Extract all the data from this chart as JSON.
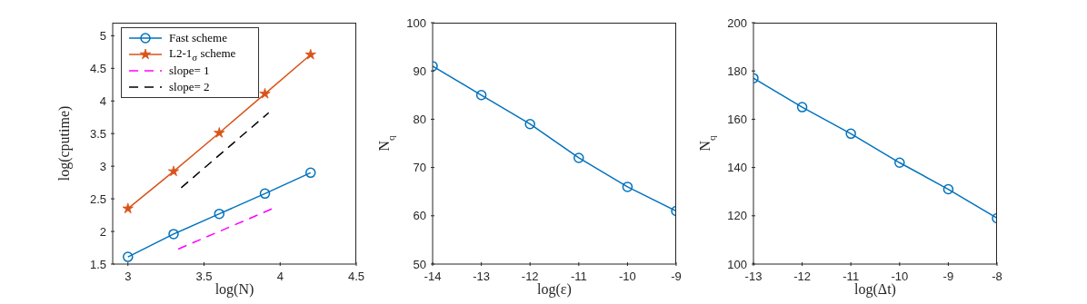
{
  "chart_data": [
    {
      "type": "line",
      "xlabel": "log(N)",
      "ylabel": "log(cputime)",
      "xlim": [
        2.9,
        4.5
      ],
      "xticks": [
        3,
        3.5,
        4,
        4.5
      ],
      "ylim": [
        1.5,
        5.2
      ],
      "yticks": [
        1.5,
        2,
        2.5,
        3,
        3.5,
        4,
        4.5,
        5
      ],
      "legend": "top left",
      "grid": false,
      "series": [
        {
          "name": "Fast scheme",
          "color": "#0072bd",
          "marker": "circle",
          "line_style": "solid",
          "x": [
            3,
            3.3,
            3.6,
            3.9,
            4.2
          ],
          "values": [
            1.61,
            1.96,
            2.27,
            2.58,
            2.9
          ]
        },
        {
          "name": "L2-1$_{σ}$ scheme",
          "color": "#d95319",
          "marker": "star",
          "line_style": "solid",
          "x": [
            3,
            3.3,
            3.6,
            3.9,
            4.2
          ],
          "values": [
            2.35,
            2.92,
            3.51,
            4.11,
            4.71
          ]
        },
        {
          "name": "slope= 1",
          "color": "#ff00ff",
          "marker": "none",
          "line_style": "dashed",
          "x": [
            3.33,
            3.95
          ],
          "values": [
            1.73,
            2.35
          ]
        },
        {
          "name": "slope= 2",
          "color": "#000000",
          "marker": "none",
          "line_style": "dashed",
          "x": [
            3.35,
            3.925
          ],
          "values": [
            2.67,
            3.82
          ]
        }
      ]
    },
    {
      "type": "line",
      "xlabel": "log(ε)",
      "ylabel": "N$_{q}$",
      "xlim": [
        -14,
        -9
      ],
      "xticks": [
        -14,
        -13,
        -12,
        -11,
        -10,
        -9
      ],
      "ylim": [
        50,
        100
      ],
      "yticks": [
        50,
        60,
        70,
        80,
        90,
        100
      ],
      "grid": false,
      "legend": false,
      "series": [
        {
          "color": "#0072bd",
          "marker": "circle",
          "line_style": "solid",
          "x": [
            -14,
            -13,
            -12,
            -11,
            -10,
            -9
          ],
          "values": [
            91,
            85,
            79,
            72,
            66,
            61
          ]
        }
      ]
    },
    {
      "type": "line",
      "xlabel": "log(Δt)",
      "ylabel": "N$_{q}$",
      "xlim": [
        -13,
        -8
      ],
      "xticks": [
        -13,
        -12,
        -11,
        -10,
        -9,
        -8
      ],
      "ylim": [
        100,
        200
      ],
      "yticks": [
        100,
        120,
        140,
        160,
        180,
        200
      ],
      "grid": false,
      "legend": false,
      "series": [
        {
          "color": "#0072bd",
          "marker": "circle",
          "line_style": "solid",
          "x": [
            -13,
            -12,
            -11,
            -10,
            -9,
            -8
          ],
          "values": [
            177,
            165,
            154,
            142,
            131,
            119
          ]
        }
      ]
    }
  ]
}
